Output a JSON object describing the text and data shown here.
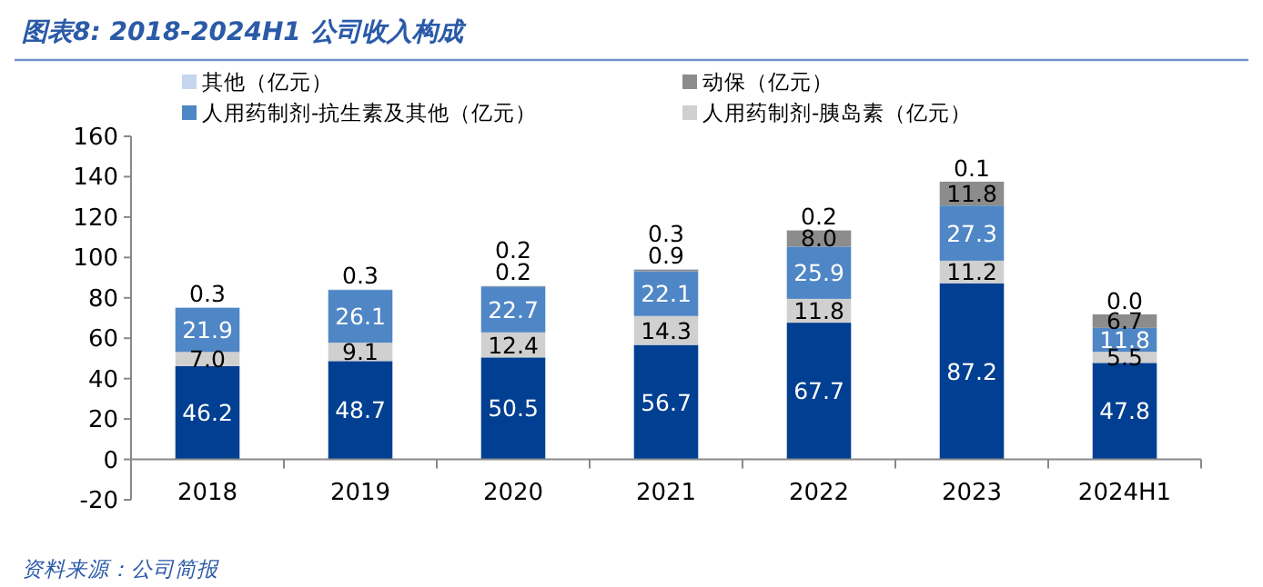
{
  "chart_data": {
    "type": "bar",
    "title": "图表8:  2018-2024H1 公司收入构成",
    "annotations": [
      "资料来源：公司简报"
    ],
    "categories": [
      "2018",
      "2019",
      "2020",
      "2021",
      "2022",
      "2023",
      "2024H1"
    ],
    "stacked": true,
    "series": [
      {
        "color": "#003f91",
        "values": [
          46.2,
          48.7,
          50.5,
          56.7,
          67.7,
          87.2,
          47.8
        ],
        "value_labels": [
          "46.2",
          "48.7",
          "50.5",
          "56.7",
          "67.7",
          "87.2",
          "47.8"
        ]
      },
      {
        "name": "人用药制剂-胰岛素（亿元）",
        "color": "#d0d0d0",
        "values": [
          7.0,
          9.1,
          12.4,
          14.3,
          11.8,
          11.2,
          5.5
        ],
        "value_labels": [
          "7.0",
          "9.1",
          "12.4",
          "14.3",
          "11.8",
          "11.2",
          "5.5"
        ]
      },
      {
        "name": "人用药制剂-抗生素及其他（亿元）",
        "color": "#4f86c6",
        "values": [
          21.9,
          26.1,
          22.7,
          22.1,
          25.9,
          27.3,
          11.8
        ],
        "value_labels": [
          "21.9",
          "26.1",
          "22.7",
          "22.1",
          "25.9",
          "27.3",
          "11.8"
        ]
      },
      {
        "name": "动保（亿元）",
        "color": "#8c8c8c",
        "values": [
          null,
          null,
          0.2,
          0.9,
          8.0,
          11.8,
          6.7
        ],
        "value_labels": [
          null,
          null,
          "0.2",
          "0.9",
          "8.0",
          "11.8",
          "6.7"
        ]
      },
      {
        "name": "其他（亿元）",
        "color": "#c5d6ee",
        "values": [
          0.3,
          0.3,
          0.2,
          0.3,
          0.2,
          0.1,
          0.0
        ],
        "value_labels": [
          "0.3",
          "0.3",
          "0.2",
          "0.3",
          "0.2",
          "0.1",
          "0.0"
        ]
      }
    ],
    "ylim": [
      -20,
      160
    ],
    "yticks": [
      -20,
      0,
      20,
      40,
      60,
      80,
      100,
      120,
      140,
      160
    ],
    "legend": "top",
    "grid": false
  }
}
